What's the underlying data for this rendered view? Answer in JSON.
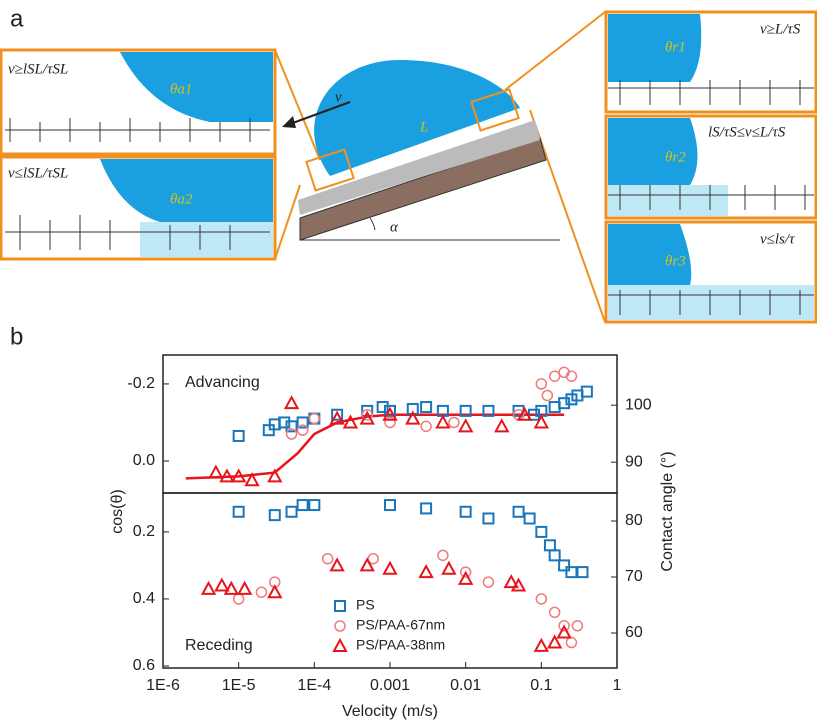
{
  "panel_labels": [
    "a",
    "b"
  ],
  "schematic": {
    "left_top": "v≥lSL/τSL",
    "left_top_angle": "θa1",
    "left_bottom": "v≤lSL/τSL",
    "left_bottom_angle": "θa2",
    "velocity": "ν",
    "length": "L",
    "tilt": "α",
    "right_1": "v≥L/τS",
    "right_1_angle": "θr1",
    "right_2": "lS/τS≤v≤L/τS",
    "right_2_angle": "θr2",
    "right_3": "v≤ls/τ",
    "right_3_angle": "θr3"
  },
  "chart_data": [
    {
      "type": "scatter",
      "annotation": "Advancing",
      "xscale": "log",
      "xlim": [
        1e-06,
        1
      ],
      "ylim": [
        -0.275,
        0.083
      ],
      "y_inverted": true,
      "yticks": [
        -0.2,
        {
          "value": 0,
          "label": "0.0"
        }
      ],
      "y2lim": [
        84.6,
        108.8
      ],
      "y2ticks": [
        90,
        100
      ],
      "series": [
        {
          "color": "#1a75bb",
          "marker": "square",
          "x": [
            1e-05,
            2.5e-05,
            3e-05,
            4e-05,
            5e-05,
            7e-05,
            0.0001,
            0.0002,
            0.0005,
            0.0008,
            0.001,
            0.002,
            0.003,
            0.005,
            0.01,
            0.02,
            0.05,
            0.08,
            0.1,
            0.15,
            0.2,
            0.25,
            0.3,
            0.4
          ],
          "values": [
            -0.065,
            -0.08,
            -0.095,
            -0.1,
            -0.09,
            -0.1,
            -0.11,
            -0.12,
            -0.13,
            -0.14,
            -0.13,
            -0.135,
            -0.14,
            -0.13,
            -0.13,
            -0.13,
            -0.13,
            -0.12,
            -0.13,
            -0.14,
            -0.15,
            -0.16,
            -0.17,
            -0.18
          ]
        },
        {
          "color": "#f07a7a",
          "marker": "circle",
          "x": [
            5e-05,
            7e-05,
            0.0001,
            0.0005,
            0.001,
            0.003,
            0.007,
            0.05,
            0.1,
            0.12,
            0.15,
            0.2,
            0.25
          ],
          "values": [
            -0.07,
            -0.08,
            -0.11,
            -0.12,
            -0.1,
            -0.09,
            -0.1,
            -0.12,
            -0.2,
            -0.17,
            -0.22,
            -0.23,
            -0.22
          ]
        },
        {
          "color": "#e8141b",
          "marker": "triangle",
          "x": [
            5e-06,
            7e-06,
            1e-05,
            1.5e-05,
            3e-05,
            5e-05,
            0.0002,
            0.0003,
            0.0005,
            0.001,
            0.002,
            0.005,
            0.01,
            0.03,
            0.06,
            0.1
          ],
          "values": [
            0.03,
            0.04,
            0.04,
            0.05,
            0.04,
            -0.15,
            -0.11,
            -0.1,
            -0.11,
            -0.12,
            -0.11,
            -0.1,
            -0.09,
            -0.09,
            -0.12,
            -0.1
          ]
        }
      ],
      "fit": {
        "color": "#e8141b",
        "x": [
          2e-06,
          1e-05,
          3e-05,
          6e-05,
          0.0001,
          0.0002,
          0.0005,
          0.001,
          0.01,
          0.1,
          0.2
        ],
        "values": [
          0.045,
          0.04,
          0.03,
          -0.02,
          -0.07,
          -0.1,
          -0.115,
          -0.12,
          -0.12,
          -0.12,
          -0.12
        ]
      }
    },
    {
      "type": "scatter",
      "annotation": "Receding",
      "xscale": "log",
      "xlim": [
        1e-06,
        1
      ],
      "xticks": [
        {
          "value": 1e-06,
          "label": "1E-6"
        },
        {
          "value": 1e-05,
          "label": "1E-5"
        },
        {
          "value": 0.0001,
          "label": "1E-4"
        },
        0.001,
        0.01,
        0.1,
        1
      ],
      "xlabel": "Velocity (m/s)",
      "ylabel": "cos(θ)",
      "y2label": "Contact angle (°)",
      "ylim": [
        0.084,
        0.606
      ],
      "y_inverted": true,
      "yticks": [
        0.2,
        0.4,
        0.6
      ],
      "y2lim": [
        53.75,
        85
      ],
      "y2ticks": [
        60,
        70,
        80
      ],
      "legend": "lower center",
      "series": [
        {
          "name": "PS",
          "color": "#1a75bb",
          "marker": "square",
          "x": [
            1e-05,
            3e-05,
            5e-05,
            7e-05,
            0.0001,
            0.001,
            0.003,
            0.01,
            0.02,
            0.05,
            0.07,
            0.1,
            0.13,
            0.15,
            0.2,
            0.25,
            0.35
          ],
          "values": [
            0.14,
            0.15,
            0.14,
            0.12,
            0.12,
            0.12,
            0.13,
            0.14,
            0.16,
            0.14,
            0.16,
            0.2,
            0.24,
            0.27,
            0.3,
            0.32,
            0.32
          ]
        },
        {
          "name": "PS/PAA-67nm",
          "color": "#f07a7a",
          "marker": "circle",
          "x": [
            1e-05,
            2e-05,
            3e-05,
            0.00015,
            0.0006,
            0.005,
            0.01,
            0.02,
            0.1,
            0.15,
            0.2,
            0.25,
            0.3
          ],
          "values": [
            0.4,
            0.38,
            0.35,
            0.28,
            0.28,
            0.27,
            0.32,
            0.35,
            0.4,
            0.44,
            0.48,
            0.53,
            0.48
          ]
        },
        {
          "name": "PS/PAA-38nm",
          "color": "#e8141b",
          "marker": "triangle",
          "x": [
            4e-06,
            6e-06,
            8e-06,
            1.2e-05,
            3e-05,
            0.0002,
            0.0005,
            0.001,
            0.003,
            0.006,
            0.01,
            0.04,
            0.05,
            0.1,
            0.15,
            0.2
          ],
          "values": [
            0.37,
            0.36,
            0.37,
            0.37,
            0.38,
            0.3,
            0.3,
            0.31,
            0.32,
            0.31,
            0.34,
            0.35,
            0.36,
            0.54,
            0.53,
            0.5
          ]
        }
      ]
    }
  ]
}
